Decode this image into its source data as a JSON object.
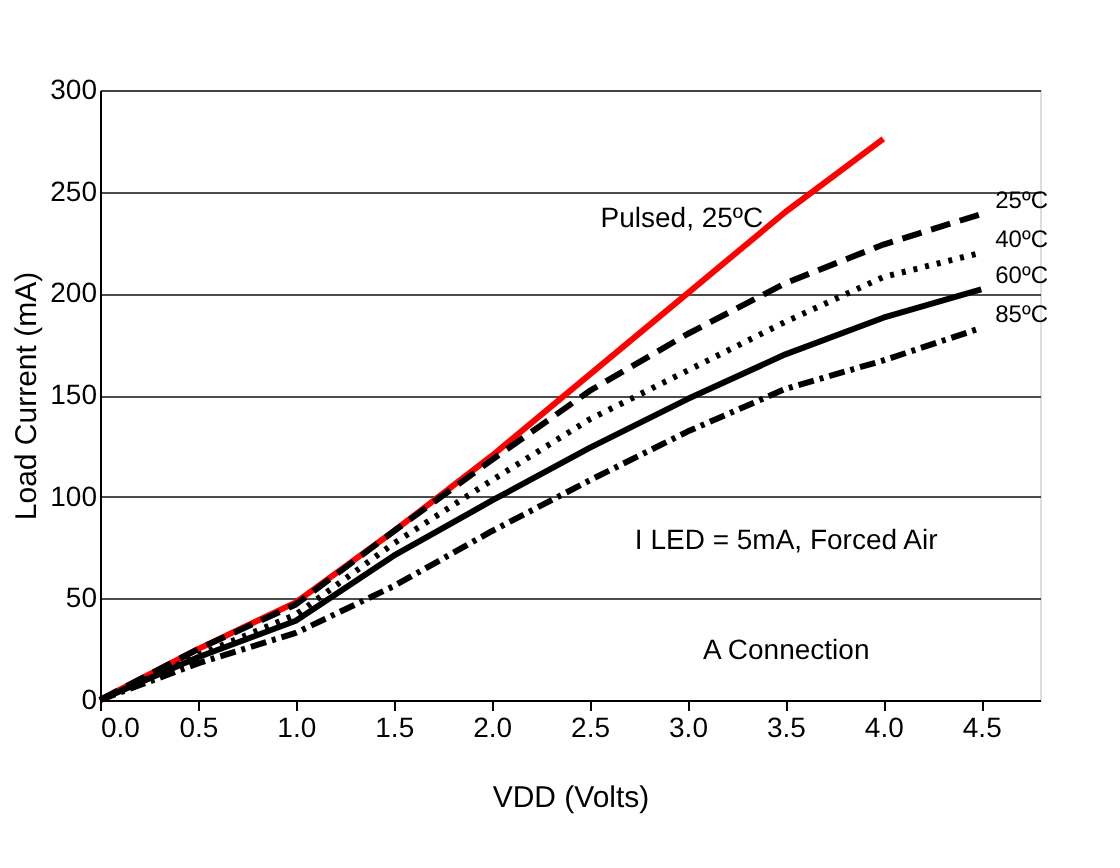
{
  "chart_data": {
    "type": "line",
    "xlabel": "VDD (Volts)",
    "ylabel": "Load Current (mA)",
    "x": [
      0,
      0.5,
      1.0,
      1.5,
      2.0,
      2.5,
      3.0,
      3.5,
      4.0,
      4.5
    ],
    "series": [
      {
        "name": "Pulsed, 25ºC",
        "color": "#ff0000",
        "line_style": "solid",
        "x": [
          0,
          0.5,
          1.0,
          1.5,
          2.0,
          2.5,
          3.0,
          3.5,
          4.0
        ],
        "values": [
          0,
          25,
          48,
          83,
          120,
          160,
          200,
          240,
          276
        ]
      },
      {
        "name": "25ºC",
        "color": "#000000",
        "line_style": "dashed",
        "values": [
          0,
          25,
          47,
          83,
          118,
          152,
          180,
          205,
          224,
          239
        ]
      },
      {
        "name": "40ºC",
        "color": "#000000",
        "line_style": "dotted",
        "values": [
          0,
          22,
          42,
          77,
          108,
          138,
          162,
          186,
          208,
          220
        ]
      },
      {
        "name": "60ºC",
        "color": "#000000",
        "line_style": "solid",
        "values": [
          0,
          21,
          39,
          71,
          98,
          124,
          148,
          170,
          188,
          202
        ]
      },
      {
        "name": "85ºC",
        "color": "#000000",
        "line_style": "dashdot",
        "values": [
          0,
          18,
          33,
          56,
          83,
          108,
          132,
          153,
          167,
          183
        ]
      }
    ],
    "xlim": [
      0,
      4.8
    ],
    "xticks": [
      {
        "value": 0,
        "label": "0.0"
      },
      0.5,
      {
        "value": 1,
        "label": "1.0"
      },
      1.5,
      {
        "value": 2,
        "label": "2.0"
      },
      2.5,
      {
        "value": 3,
        "label": "3.0"
      },
      3.5,
      {
        "value": 4,
        "label": "4.0"
      },
      4.5
    ],
    "ylim": [
      0,
      300
    ],
    "yticks": [
      0,
      50,
      100,
      150,
      200,
      250,
      300
    ],
    "grid": "y",
    "annotations": [
      "I LED = 5mA, Forced Air",
      "A Connection"
    ]
  }
}
